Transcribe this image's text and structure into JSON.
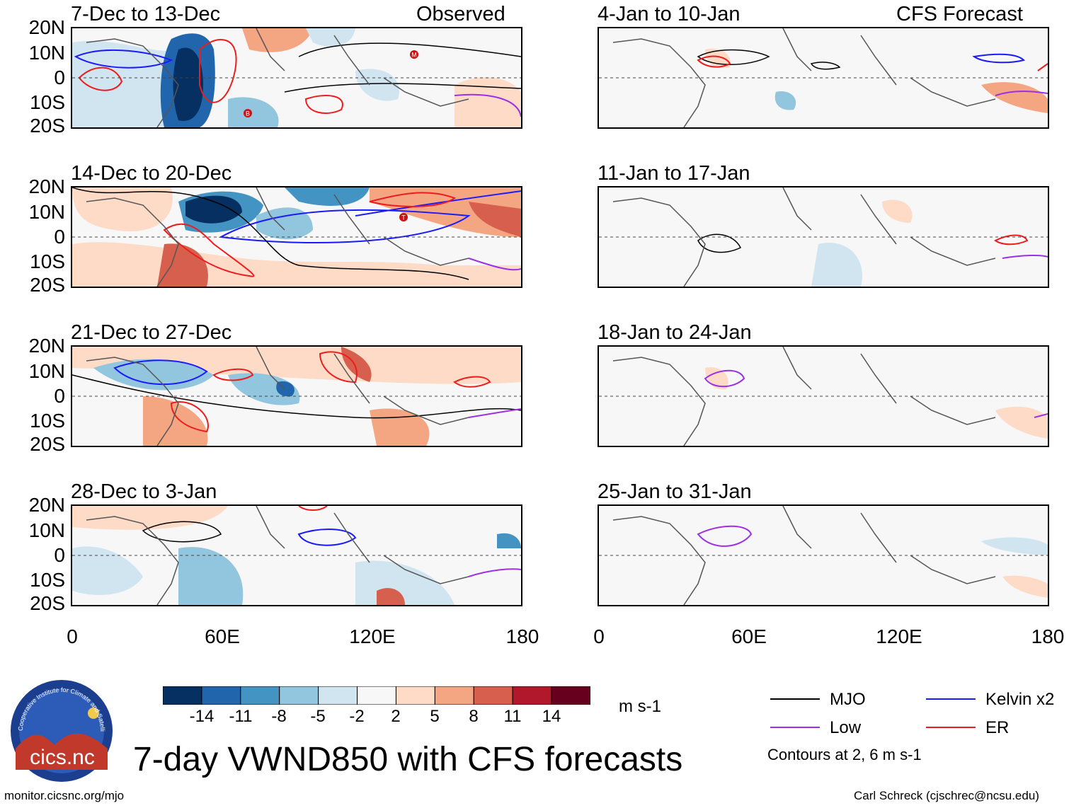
{
  "colors": {
    "mjo": "#000000",
    "kelvin": "#1a1aff",
    "er": "#ee1c1c",
    "low": "#9b30e6",
    "land": "#555555",
    "neutral": "#f7f7f7"
  },
  "observed_label": "Observed",
  "forecast_label": "CFS Forecast",
  "lat_labels": [
    "20N",
    "10N",
    "0",
    "10S",
    "20S"
  ],
  "lon_labels": [
    "0",
    "60E",
    "120E",
    "180"
  ],
  "panels_left": [
    {
      "title": "7-Dec to 13-Dec",
      "cyclones": [
        "M",
        "B"
      ]
    },
    {
      "title": "14-Dec to 20-Dec",
      "cyclones": [
        "T"
      ]
    },
    {
      "title": "21-Dec to 27-Dec",
      "cyclones": []
    },
    {
      "title": "28-Dec to 3-Jan",
      "cyclones": []
    }
  ],
  "panels_right": [
    {
      "title": "4-Jan to 10-Jan"
    },
    {
      "title": "11-Jan to 17-Jan"
    },
    {
      "title": "18-Jan to 24-Jan"
    },
    {
      "title": "25-Jan to 31-Jan"
    }
  ],
  "colorbar": {
    "colors": [
      "#053061",
      "#2166ac",
      "#4393c3",
      "#92c5de",
      "#d1e5f0",
      "#f7f7f7",
      "#fddbc7",
      "#f4a582",
      "#d6604d",
      "#b2182b",
      "#67001f"
    ],
    "ticks": [
      "-14",
      "-11",
      "-8",
      "-5",
      "-2",
      "2",
      "5",
      "8",
      "11",
      "14"
    ],
    "units": "m s-1"
  },
  "main_title": "7-day VWND850 with CFS forecasts",
  "legend": {
    "mjo": "MJO",
    "kelvin": "Kelvin x2",
    "low": "Low",
    "er": "ER",
    "contours_note": "Contours at 2, 6 m s-1"
  },
  "logo_text": "cics.nc",
  "logo_ring_text": "Cooperative Institute for Climate and Satellites",
  "footer_left": "monitor.cicsnc.org/mjo",
  "footer_right": "Carl Schreck (cjschrec@ncsu.edu)"
}
